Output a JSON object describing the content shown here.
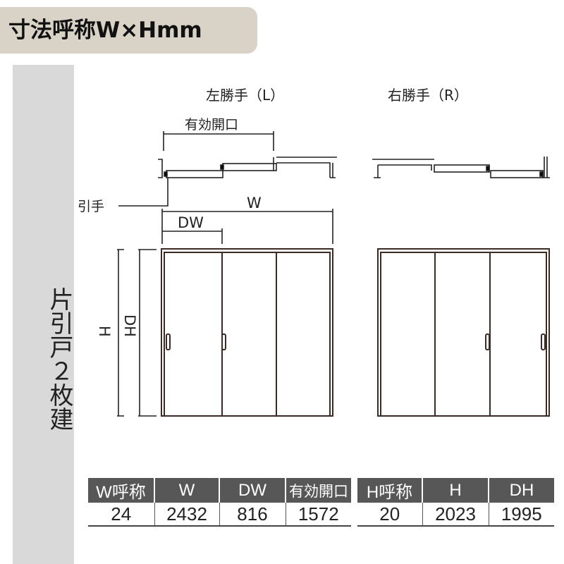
{
  "title": "寸法呼称W×Hmm",
  "side_label": "片引戸２枚建",
  "left_diagram": {
    "heading": "左勝手（L）",
    "opening_label": "有効開口",
    "handle_label": "引手",
    "w_label": "W",
    "dw_label": "DW",
    "h_label": "H",
    "dh_label": "DH"
  },
  "right_diagram": {
    "heading": "右勝手（R）"
  },
  "colors": {
    "frame": "#3b2b24",
    "header_bg": "#575757",
    "title_bg": "#d9d2c6",
    "side_bg": "#d9d9d9"
  },
  "width_table": {
    "headers": [
      "W呼称",
      "W",
      "DW",
      "有効開口"
    ],
    "values": [
      "24",
      "2432",
      "816",
      "1572"
    ]
  },
  "height_table": {
    "headers": [
      "H呼称",
      "H",
      "DH"
    ],
    "values": [
      "20",
      "2023",
      "1995"
    ]
  }
}
